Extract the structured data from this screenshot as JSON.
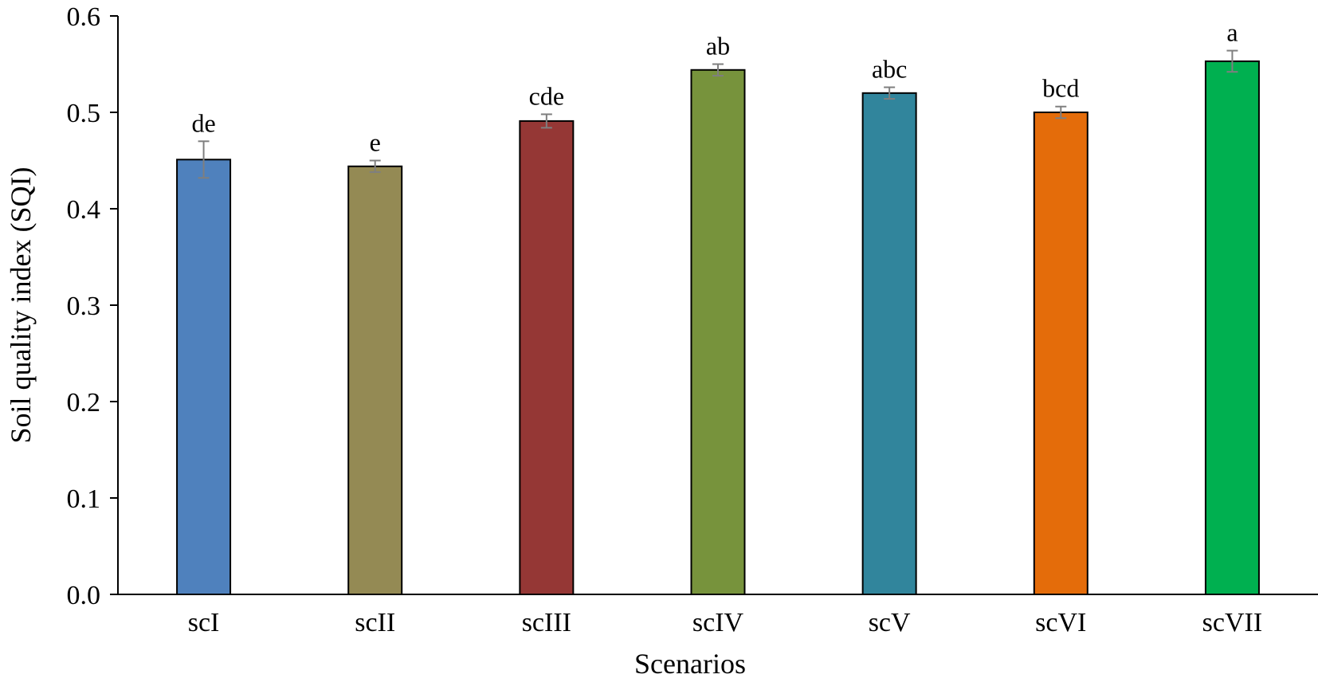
{
  "chart_data": {
    "type": "bar",
    "title": "",
    "xlabel": "Scenarios",
    "ylabel": "Soil quality index (SQI)",
    "ylim": [
      0,
      0.6
    ],
    "yticks": [
      "0.0",
      "0.1",
      "0.2",
      "0.3",
      "0.4",
      "0.5",
      "0.6"
    ],
    "grid": false,
    "legend": "none",
    "categories": [
      "scI",
      "scII",
      "scIII",
      "scIV",
      "scV",
      "scVI",
      "scVII"
    ],
    "values": [
      0.451,
      0.444,
      0.491,
      0.544,
      0.52,
      0.5,
      0.553
    ],
    "errors": [
      0.019,
      0.006,
      0.007,
      0.006,
      0.006,
      0.006,
      0.011
    ],
    "significance_labels": [
      "de",
      "e",
      "cde",
      "ab",
      "abc",
      "bcd",
      "a"
    ],
    "colors": [
      "#4f81bd",
      "#948a54",
      "#953735",
      "#77933c",
      "#31859c",
      "#e46c0a",
      "#00b050"
    ],
    "errorbar_color": "#7f7f7f"
  }
}
